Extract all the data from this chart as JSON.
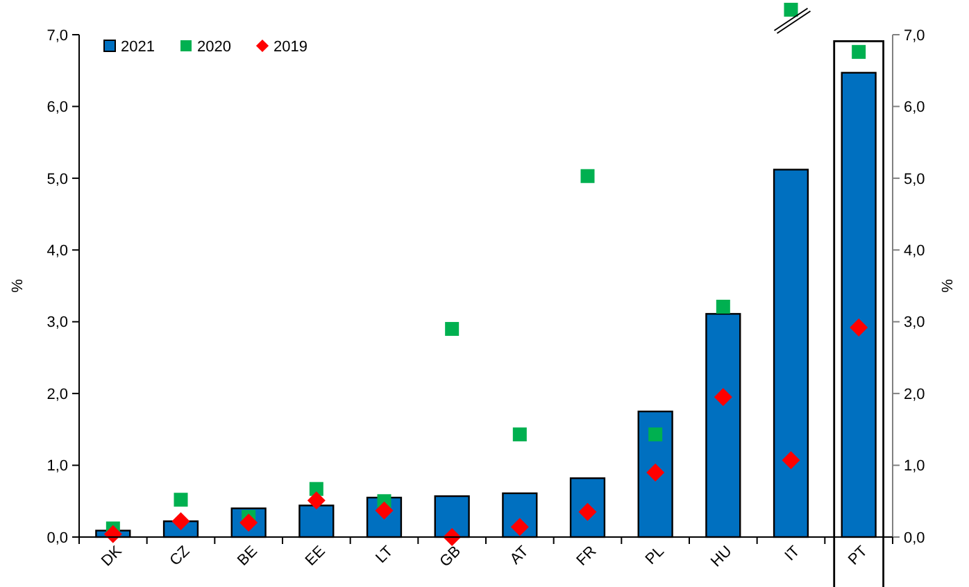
{
  "chart_data": {
    "type": "bar",
    "ylabel": "%",
    "y2label": "%",
    "categories": [
      "DK",
      "CZ",
      "BE",
      "EE",
      "LT",
      "GB",
      "AT",
      "FR",
      "PL",
      "HU",
      "IT",
      "PT"
    ],
    "series": [
      {
        "name": "2021",
        "color": "#0070c0",
        "values": [
          0.09,
          0.22,
          0.4,
          0.44,
          0.55,
          0.57,
          0.61,
          0.82,
          1.75,
          3.11,
          5.12,
          6.47
        ]
      },
      {
        "name": "2020",
        "type": "scatter",
        "marker": "square",
        "color": "#00b050",
        "values": [
          0.12,
          0.52,
          0.28,
          0.67,
          0.5,
          2.9,
          1.43,
          5.03,
          1.43,
          3.21,
          null,
          6.76
        ]
      },
      {
        "name": "2019",
        "type": "scatter",
        "marker": "diamond",
        "color": "#ff0000",
        "values": [
          0.04,
          0.22,
          0.2,
          0.51,
          0.37,
          0.0,
          0.14,
          0.35,
          0.9,
          1.95,
          1.07,
          2.92
        ]
      }
    ],
    "ylim": [
      0,
      7
    ],
    "yticks": [
      {
        "value": 0,
        "label": "0,0"
      },
      {
        "value": 1,
        "label": "1,0"
      },
      {
        "value": 2,
        "label": "2,0"
      },
      {
        "value": 3,
        "label": "3,0"
      },
      {
        "value": 4,
        "label": "4,0"
      },
      {
        "value": 5,
        "label": "5,0"
      },
      {
        "value": 6,
        "label": "6,0"
      },
      {
        "value": 7,
        "label": "7,0"
      }
    ],
    "y2lim": [
      0,
      7
    ],
    "y2ticks": [
      {
        "value": 0,
        "label": "0,0"
      },
      {
        "value": 1,
        "label": "1,0"
      },
      {
        "value": 2,
        "label": "2,0"
      },
      {
        "value": 3,
        "label": "3,0"
      },
      {
        "value": 4,
        "label": "4,0"
      },
      {
        "value": 5,
        "label": "5,0"
      },
      {
        "value": 6,
        "label": "6,0"
      },
      {
        "value": 7,
        "label": "7,0"
      }
    ],
    "grid": false,
    "legend": "top left"
  }
}
